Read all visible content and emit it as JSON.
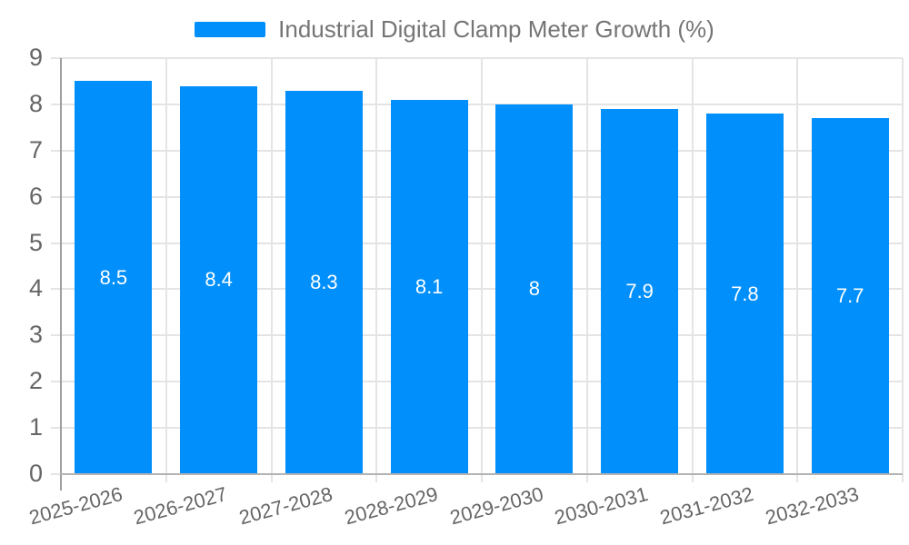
{
  "chart_data": {
    "type": "bar",
    "title": "Industrial Digital Clamp Meter Growth (%)",
    "legend_position": "top",
    "categories": [
      "2025-2026",
      "2026-2027",
      "2027-2028",
      "2028-2029",
      "2029-2030",
      "2030-2031",
      "2031-2032",
      "2032-2033"
    ],
    "values": [
      8.5,
      8.4,
      8.3,
      8.1,
      8,
      7.9,
      7.8,
      7.7
    ],
    "value_labels": [
      "8.5",
      "8.4",
      "8.3",
      "8.1",
      "8",
      "7.9",
      "7.8",
      "7.7"
    ],
    "ylim": [
      0,
      9
    ],
    "yticks": [
      0,
      1,
      2,
      3,
      4,
      5,
      6,
      7,
      8,
      9
    ],
    "grid": true,
    "colors": {
      "bar": "#008FFB",
      "grid": "#e4e4e4",
      "axis_y": "#9e9e9e",
      "axis_x": "#b3b3b3",
      "axis_label": "#666666",
      "legend_text": "#757575",
      "data_label": "#ffffff"
    }
  }
}
